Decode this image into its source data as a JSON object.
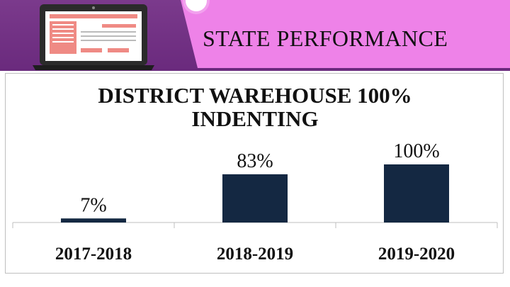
{
  "header": {
    "title": "STATE PERFORMANCE"
  },
  "colors": {
    "bar": "#142842",
    "pink": "#ee82e8",
    "purple": "#6a2a7d"
  },
  "icons": {
    "header_graphic": "laptop-icon"
  },
  "chart_data": {
    "type": "bar",
    "title": "DISTRICT  WAREHOUSE  100%\nINDENTING",
    "categories": [
      "2017-2018",
      "2018-2019",
      "2019-2020"
    ],
    "values": [
      7,
      83,
      100
    ],
    "data_labels": [
      "7%",
      "83%",
      "100%"
    ],
    "xlabel": "",
    "ylabel": "",
    "ylim": [
      0,
      100
    ],
    "grid": false,
    "legend": "none"
  }
}
